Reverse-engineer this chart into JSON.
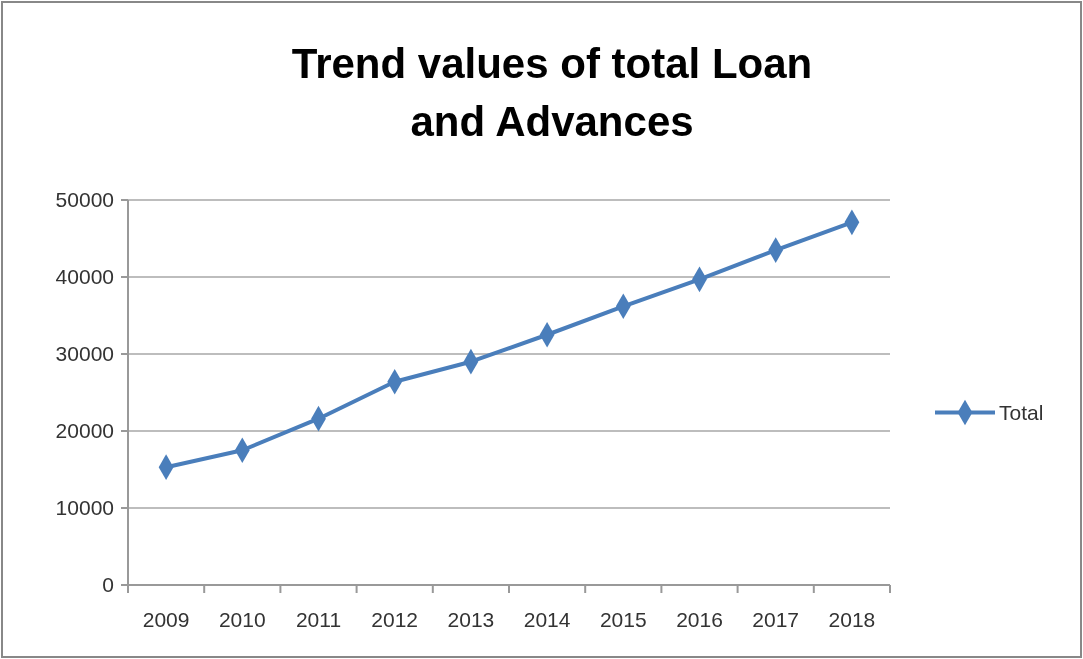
{
  "chart_data": {
    "type": "line",
    "title": "Trend values of total Loan and Advances",
    "categories": [
      "2009",
      "2010",
      "2011",
      "2012",
      "2013",
      "2014",
      "2015",
      "2016",
      "2017",
      "2018"
    ],
    "series": [
      {
        "name": "Total",
        "color": "#4a7ebb",
        "values": [
          15300,
          17500,
          21600,
          26400,
          29000,
          32500,
          36200,
          39700,
          43500,
          47100
        ]
      }
    ],
    "ylim": [
      0,
      50000
    ],
    "yticks": [
      0,
      10000,
      20000,
      30000,
      40000,
      50000
    ],
    "grid": "y",
    "legend": "right",
    "marker": "diamond",
    "line_style": "solid"
  }
}
